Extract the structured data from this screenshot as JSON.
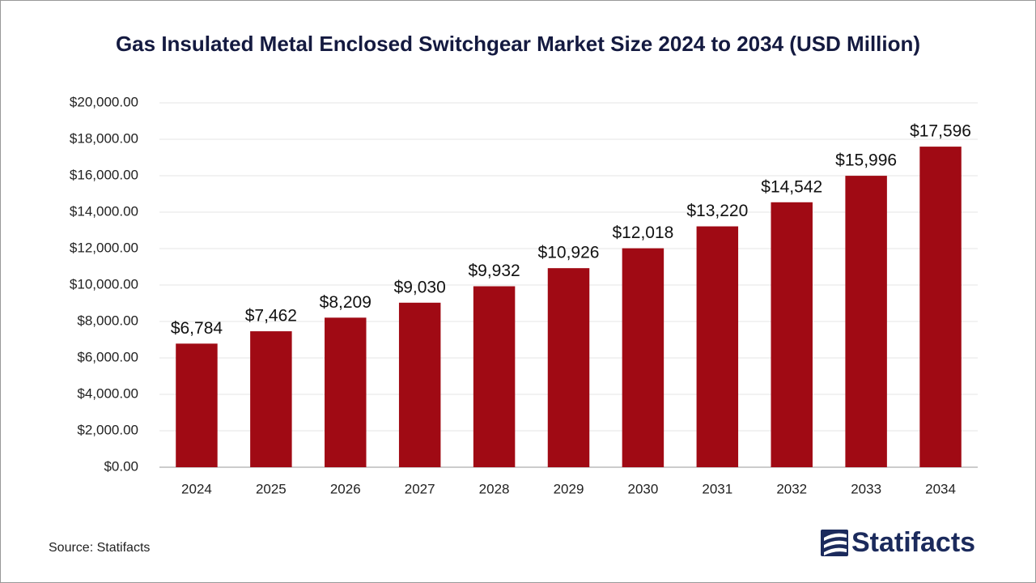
{
  "chart_data": {
    "type": "bar",
    "title": "Gas Insulated Metal Enclosed Switchgear Market Size 2024 to 2034 (USD Million)",
    "categories": [
      "2024",
      "2025",
      "2026",
      "2027",
      "2028",
      "2029",
      "2030",
      "2031",
      "2032",
      "2033",
      "2034"
    ],
    "values": [
      6784,
      7462,
      8209,
      9030,
      9932,
      10926,
      12018,
      13220,
      14542,
      15996,
      17596
    ],
    "value_labels": [
      "$6,784",
      "$7,462",
      "$8,209",
      "$9,030",
      "$9,932",
      "$10,926",
      "$12,018",
      "$13,220",
      "$14,542",
      "$15,996",
      "$17,596"
    ],
    "color": "#a00a14",
    "ylim": [
      0,
      20000
    ],
    "yticks": [
      {
        "value": 0,
        "label": "$0.00"
      },
      {
        "value": 2000,
        "label": "$2,000.00"
      },
      {
        "value": 4000,
        "label": "$4,000.00"
      },
      {
        "value": 6000,
        "label": "$6,000.00"
      },
      {
        "value": 8000,
        "label": "$8,000.00"
      },
      {
        "value": 10000,
        "label": "$10,000.00"
      },
      {
        "value": 12000,
        "label": "$12,000.00"
      },
      {
        "value": 14000,
        "label": "$14,000.00"
      },
      {
        "value": 16000,
        "label": "$16,000.00"
      },
      {
        "value": 18000,
        "label": "$18,000.00"
      },
      {
        "value": 20000,
        "label": "$20,000.00"
      }
    ],
    "grid": true,
    "source": "Source: Statifacts",
    "logo": "Statifacts"
  }
}
